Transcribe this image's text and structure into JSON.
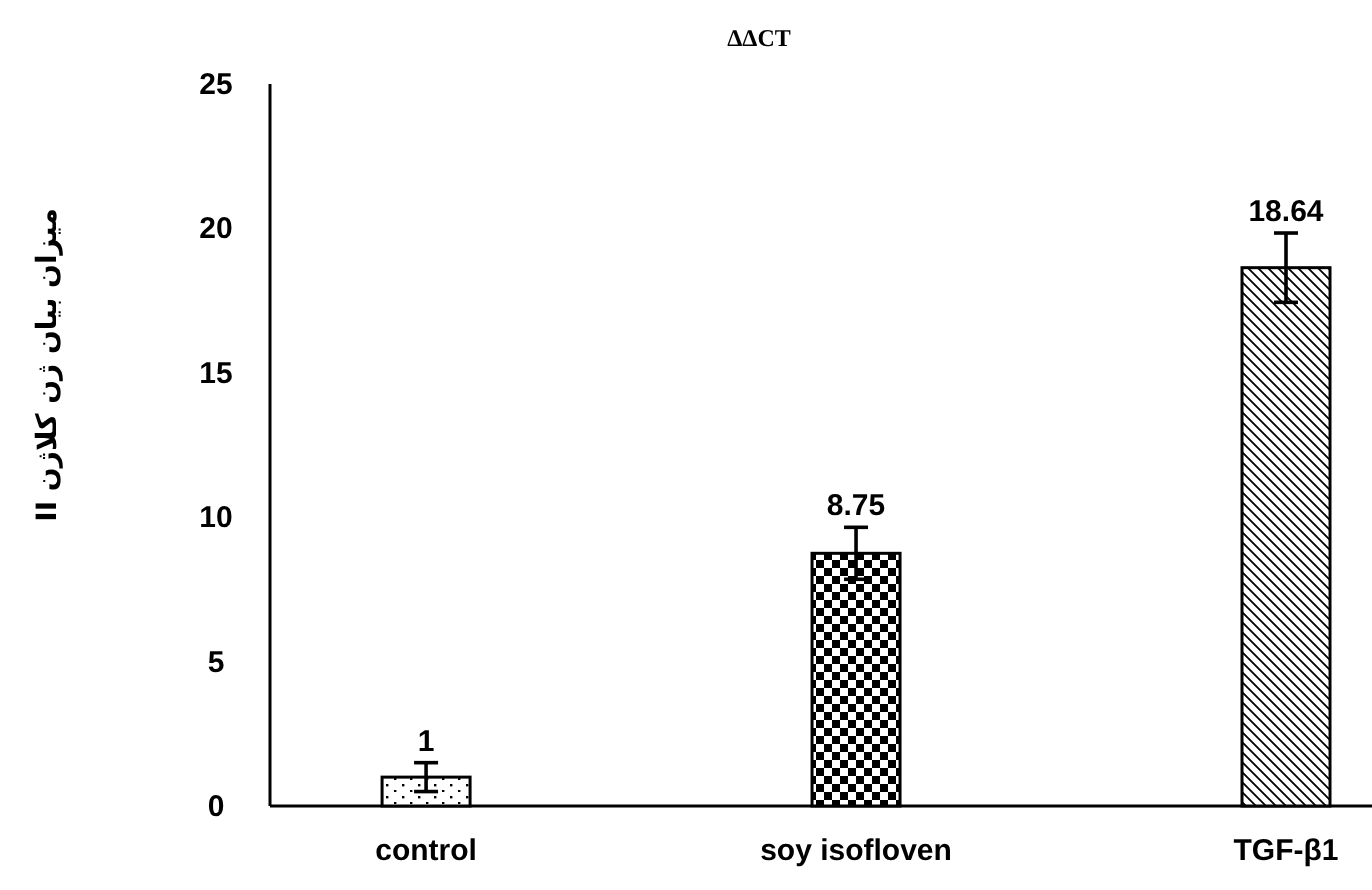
{
  "chart_data": {
    "type": "bar",
    "title": "ΔΔCT",
    "ylabel": "میزان بیان ژن کلاژن II",
    "categories": [
      "control",
      "soy isofloven",
      "TGF-β1"
    ],
    "values": [
      1,
      8.75,
      18.64
    ],
    "errors": [
      0.5,
      0.9,
      1.2
    ],
    "colors": [
      "#000000",
      "#000000",
      "#000000"
    ],
    "ylim": [
      0,
      25
    ],
    "yticks": [
      0,
      5,
      10,
      15,
      20,
      25
    ],
    "data_labels": true
  }
}
